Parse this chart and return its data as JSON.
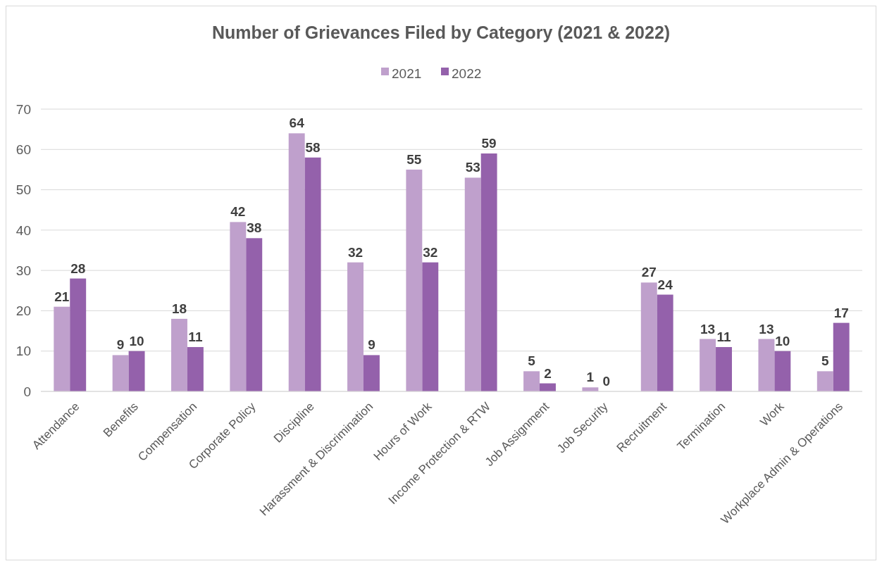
{
  "chart_data": {
    "type": "bar",
    "title": "Number of Grievances Filed by Category (2021 & 2022)",
    "categories": [
      "Attendance",
      "Benefits",
      "Compensation",
      "Corporate Policy",
      "Discipline",
      "Harassment & Discrimination",
      "Hours of Work",
      "Income Protection & RTW",
      "Job Assignment",
      "Job Security",
      "Recruitment",
      "Termination",
      "Work",
      "Workplace Admin & Operations"
    ],
    "series": [
      {
        "name": "2021",
        "color": "#bfa0cc",
        "values": [
          21,
          9,
          18,
          42,
          64,
          32,
          55,
          53,
          5,
          1,
          27,
          13,
          13,
          5
        ]
      },
      {
        "name": "2022",
        "color": "#9461ab",
        "values": [
          28,
          10,
          11,
          38,
          58,
          9,
          32,
          59,
          2,
          0,
          24,
          11,
          10,
          17
        ]
      }
    ],
    "ylim": [
      0,
      70
    ],
    "yticks": [
      0,
      10,
      20,
      30,
      40,
      50,
      60,
      70
    ],
    "grid": "y",
    "legend": "top",
    "data_labels": true
  }
}
